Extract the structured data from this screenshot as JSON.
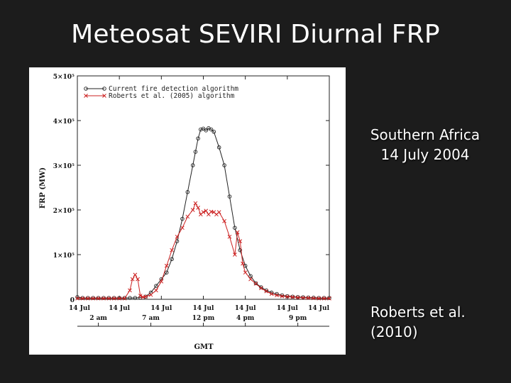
{
  "slide": {
    "title": "Meteosat SEVIRI Diurnal FRP",
    "region_line1": "Southern Africa",
    "region_line2": "14 July 2004",
    "reference_line1": "Roberts et al.",
    "reference_line2": "(2010)"
  },
  "chart_data": {
    "type": "line",
    "ylabel": "FRP (MW)",
    "xlabel": "GMT",
    "ylim": [
      0,
      500000
    ],
    "xlim": [
      0,
      24
    ],
    "y_ticks": [
      {
        "value": 0,
        "label": "0"
      },
      {
        "value": 100000,
        "label": "1×10⁵"
      },
      {
        "value": 200000,
        "label": "2×10⁵"
      },
      {
        "value": 300000,
        "label": "3×10⁵"
      },
      {
        "value": 400000,
        "label": "4×10⁵"
      },
      {
        "value": 500000,
        "label": "5×10⁵"
      }
    ],
    "x_ticks_top": [
      {
        "value": 0,
        "label": "14 Jul"
      },
      {
        "value": 4,
        "label": "14 Jul"
      },
      {
        "value": 8,
        "label": "14 Jul"
      },
      {
        "value": 12,
        "label": "14 Jul"
      },
      {
        "value": 16,
        "label": "14 Jul"
      },
      {
        "value": 20,
        "label": "14 Jul"
      },
      {
        "value": 24,
        "label": "14 Jul"
      }
    ],
    "x_ticks_bottom": [
      {
        "value": 2,
        "label": "2 am"
      },
      {
        "value": 7,
        "label": "7 am"
      },
      {
        "value": 12,
        "label": "12 pm"
      },
      {
        "value": 16,
        "label": "4 pm"
      },
      {
        "value": 21,
        "label": "9 pm"
      }
    ],
    "series": [
      {
        "name": "Current fire detection algorithm",
        "color": "#222222",
        "marker": "circle",
        "x": [
          0,
          0.5,
          1,
          1.5,
          2,
          2.5,
          3,
          3.5,
          4,
          4.5,
          5,
          5.5,
          6,
          6.5,
          7,
          7.5,
          8,
          8.5,
          9,
          9.5,
          10,
          10.5,
          11,
          11.25,
          11.5,
          11.75,
          12,
          12.25,
          12.5,
          12.75,
          13,
          13.5,
          14,
          14.5,
          15,
          15.5,
          16,
          16.5,
          17,
          17.5,
          18,
          18.5,
          19,
          19.5,
          20,
          20.5,
          21,
          21.5,
          22,
          22.5,
          23,
          23.5,
          24
        ],
        "values": [
          5000,
          3000,
          3000,
          3000,
          3000,
          3000,
          3000,
          3000,
          3000,
          3000,
          3000,
          3000,
          4000,
          6000,
          15000,
          30000,
          45000,
          60000,
          90000,
          130000,
          180000,
          240000,
          300000,
          330000,
          360000,
          380000,
          382000,
          378000,
          383000,
          380000,
          375000,
          340000,
          300000,
          230000,
          160000,
          110000,
          75000,
          52000,
          36000,
          27000,
          20000,
          15000,
          12000,
          9000,
          7000,
          6000,
          5000,
          4500,
          4000,
          3500,
          3000,
          3000,
          3000
        ]
      },
      {
        "name": "Roberts et al. (2005) algorithm",
        "color": "#cc2222",
        "marker": "x",
        "x": [
          0,
          0.5,
          1,
          1.5,
          2,
          2.5,
          3,
          3.5,
          4,
          4.5,
          5,
          5.25,
          5.5,
          5.75,
          6,
          6.25,
          6.5,
          7,
          7.5,
          8,
          8.5,
          9,
          9.5,
          10,
          10.5,
          11,
          11.25,
          11.5,
          11.75,
          12,
          12.25,
          12.5,
          12.75,
          13,
          13.25,
          13.5,
          14,
          14.5,
          15,
          15.25,
          15.5,
          15.75,
          16,
          16.5,
          17,
          17.5,
          18,
          18.5,
          19,
          19.5,
          20,
          20.5,
          21,
          21.5,
          22,
          22.5,
          23,
          23.5,
          24
        ],
        "values": [
          2000,
          2000,
          2000,
          2000,
          2000,
          2000,
          2000,
          2000,
          2000,
          2000,
          20000,
          45000,
          55000,
          45000,
          8000,
          5000,
          6000,
          10000,
          20000,
          40000,
          75000,
          110000,
          140000,
          160000,
          185000,
          200000,
          215000,
          205000,
          190000,
          195000,
          198000,
          190000,
          196000,
          195000,
          190000,
          195000,
          175000,
          140000,
          100000,
          150000,
          130000,
          80000,
          60000,
          45000,
          35000,
          25000,
          18000,
          12000,
          9000,
          7000,
          6000,
          5000,
          4000,
          3500,
          3000,
          2500,
          2000,
          2000,
          2000
        ]
      }
    ]
  }
}
